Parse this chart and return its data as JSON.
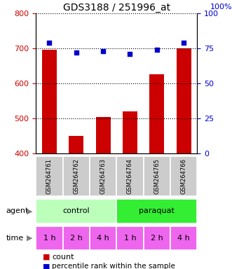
{
  "title": "GDS3188 / 251996_at",
  "samples": [
    "GSM264761",
    "GSM264762",
    "GSM264763",
    "GSM264764",
    "GSM264765",
    "GSM264766"
  ],
  "counts": [
    697,
    449,
    504,
    519,
    626,
    700
  ],
  "percentiles": [
    79,
    72,
    73,
    71,
    74,
    79
  ],
  "ylim_left": [
    400,
    800
  ],
  "ylim_right": [
    0,
    100
  ],
  "yticks_left": [
    400,
    500,
    600,
    700,
    800
  ],
  "yticks_right": [
    0,
    25,
    50,
    75,
    100
  ],
  "bar_color": "#cc0000",
  "dot_color": "#0000cc",
  "agent_control_color": "#bbffbb",
  "agent_paraquat_color": "#33ee33",
  "time_color": "#ee66ee",
  "time_labels": [
    "1 h",
    "2 h",
    "4 h",
    "1 h",
    "2 h",
    "4 h"
  ],
  "background_color": "#ffffff"
}
